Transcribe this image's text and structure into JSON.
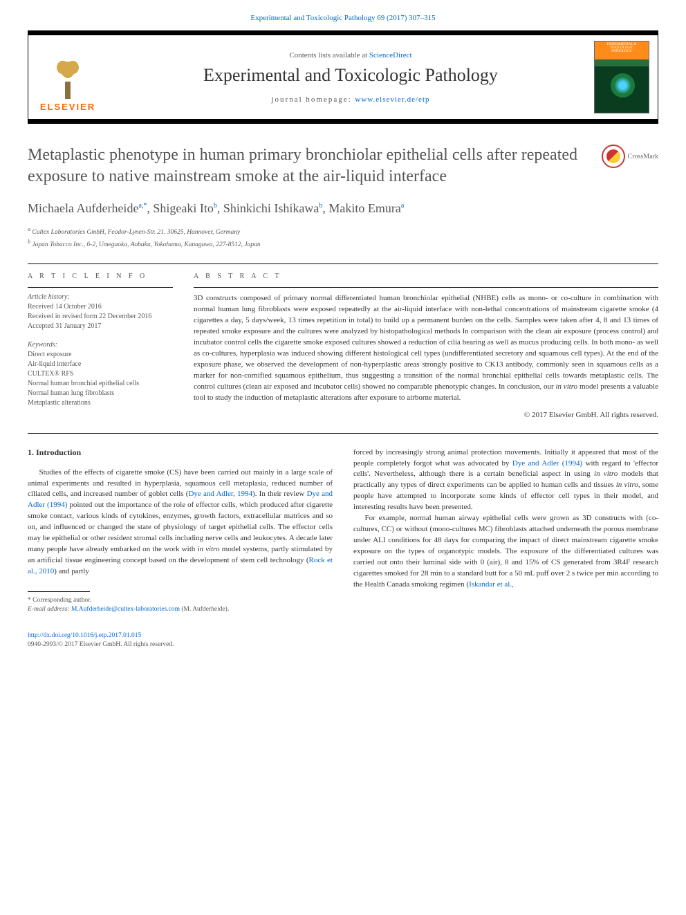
{
  "header": {
    "citation_link_prefix": "Experimental and Toxicologic Pathology 69 (2017) 307–315",
    "contents_text": "Contents lists available at ",
    "contents_link": "ScienceDirect",
    "journal_name": "Experimental and Toxicologic Pathology",
    "homepage_label": "journal homepage: ",
    "homepage_url": "www.elsevier.de/etp",
    "elsevier_label": "ELSEVIER",
    "cover_title": "EXPERIMENTAL & TOXICOLOGIC",
    "cover_subtitle": "PATHOLOGY"
  },
  "crossmark_label": "CrossMark",
  "article": {
    "title": "Metaplastic phenotype in human primary bronchiolar epithelial cells after repeated exposure to native mainstream smoke at the air-liquid interface",
    "authors_html": "Michaela Aufderheide<sup>a,*</sup>, Shigeaki Ito<sup>b</sup>, Shinkichi Ishikawa<sup>b</sup>, Makito Emura<sup>a</sup>",
    "affiliations": [
      "a Cultex Laboratories GmbH, Feodor-Lynen-Str. 21, 30625, Hannover, Germany",
      "b Japan Tobacco Inc., 6-2, Umegaoka, Aobaku, Yokohama, Kanagawa, 227-8512, Japan"
    ]
  },
  "info": {
    "heading": "A R T I C L E   I N F O",
    "history_header": "Article history:",
    "history": [
      "Received 14 October 2016",
      "Received in revised form 22 December 2016",
      "Accepted 31 January 2017"
    ],
    "keywords_header": "Keywords:",
    "keywords": [
      "Direct exposure",
      "Air-liquid interface",
      "CULTEX® RFS",
      "Normal human bronchial epithelial cells",
      "Normal human lung fibroblasts",
      "Metaplastic alterations"
    ]
  },
  "abstract": {
    "heading": "A B S T R A C T",
    "text": "3D constructs composed of primary normal differentiated human bronchiolar epithelial (NHBE) cells as mono- or co-culture in combination with normal human lung fibroblasts were exposed repeatedly at the air-liquid interface with non-lethal concentrations of mainstream cigarette smoke (4 cigarettes a day, 5 days/week, 13 times repetition in total) to build up a permanent burden on the cells. Samples were taken after 4, 8 and 13 times of repeated smoke exposure and the cultures were analyzed by histopathological methods In comparison with the clean air exposure (process control) and incubator control cells the cigarette smoke exposed cultures showed a reduction of cilia bearing as well as mucus producing cells. In both mono- as well as co-cultures, hyperplasia was induced showing different histological cell types (undifferentiated secretory and squamous cell types). At the end of the exposure phase, we observed the development of non-hyperplastic areas strongly positive to CK13 antibody, commonly seen in squamous cells as a marker for non-cornified squamous epithelium, thus suggesting a transition of the normal bronchial epithelial cells towards metaplastic cells. The control cultures (clean air exposed and incubator cells) showed no comparable phenotypic changes. In conclusion, our in vitro model presents a valuable tool to study the induction of metaplastic alterations after exposure to airborne material.",
    "copyright": "© 2017 Elsevier GmbH. All rights reserved."
  },
  "body": {
    "section_heading": "1. Introduction",
    "col1_p1": "Studies of the effects of cigarette smoke (CS) have been carried out mainly in a large scale of animal experiments and resulted in hyperplasia, squamous cell metaplasia, reduced number of ciliated cells, and increased number of goblet cells (Dye and Adler, 1994). In their review Dye and Adler (1994) pointed out the importance of the role of effector cells, which produced after cigarette smoke contact, various kinds of cytokines, enzymes, growth factors, extracellular matrices and so on, and influenced or changed the state of physiology of target epithelial cells. The effector cells may be epithelial or other resident stromal cells including nerve cells and leukocytes. A decade later many people have already embarked on the work with in vitro model systems, partly stimulated by an artificial tissue engineering concept based on the development of stem cell technology (Rock et al., 2010) and partly",
    "col2_p1": "forced by increasingly strong animal protection movements. Initially it appeared that most of the people completely forgot what was advocated by Dye and Adler (1994) with regard to 'effector cells'. Nevertheless, although there is a certain beneficial aspect in using in vitro models that practically any types of direct experiments can be applied to human cells and tissues in vitro, some people have attempted to incorporate some kinds of effector cell types in their model, and interesting results have been presented.",
    "col2_p2": "For example, normal human airway epithelial cells were grown as 3D constructs with (co-cultures, CC) or without (mono-cultures MC) fibroblasts attached underneath the porous membrane under ALI conditions for 48 days for comparing the impact of direct mainstream cigarette smoke exposure on the types of organotypic models. The exposure of the differentiated cultures was carried out onto their luminal side with 0 (air), 8 and 15% of CS generated from 3R4F research cigarettes smoked for 28 min to a standard butt for a 50 mL puff over 2 s twice per min according to the Health Canada smoking regimen (Iskandar et al.,"
  },
  "footnote": {
    "corresponding": "* Corresponding author.",
    "email_label": "E-mail address: ",
    "email": "M.Aufderheide@cultex-laboratories.com",
    "email_person": " (M. Aufderheide)."
  },
  "footer": {
    "doi": "http://dx.doi.org/10.1016/j.etp.2017.01.015",
    "issn_line": "0940-2993/© 2017 Elsevier GmbH. All rights reserved."
  },
  "links": {
    "dye_adler": "Dye and Adler, 1994",
    "dye_adler_paren": "Dye and Adler (1994)",
    "rock": "Rock et al., 2010",
    "iskandar": "Iskandar et al.,"
  },
  "colors": {
    "link": "#0066cc",
    "text": "#333333",
    "muted": "#555555",
    "elsevier_orange": "#ff6600",
    "crossmark_red": "#cc3333"
  }
}
